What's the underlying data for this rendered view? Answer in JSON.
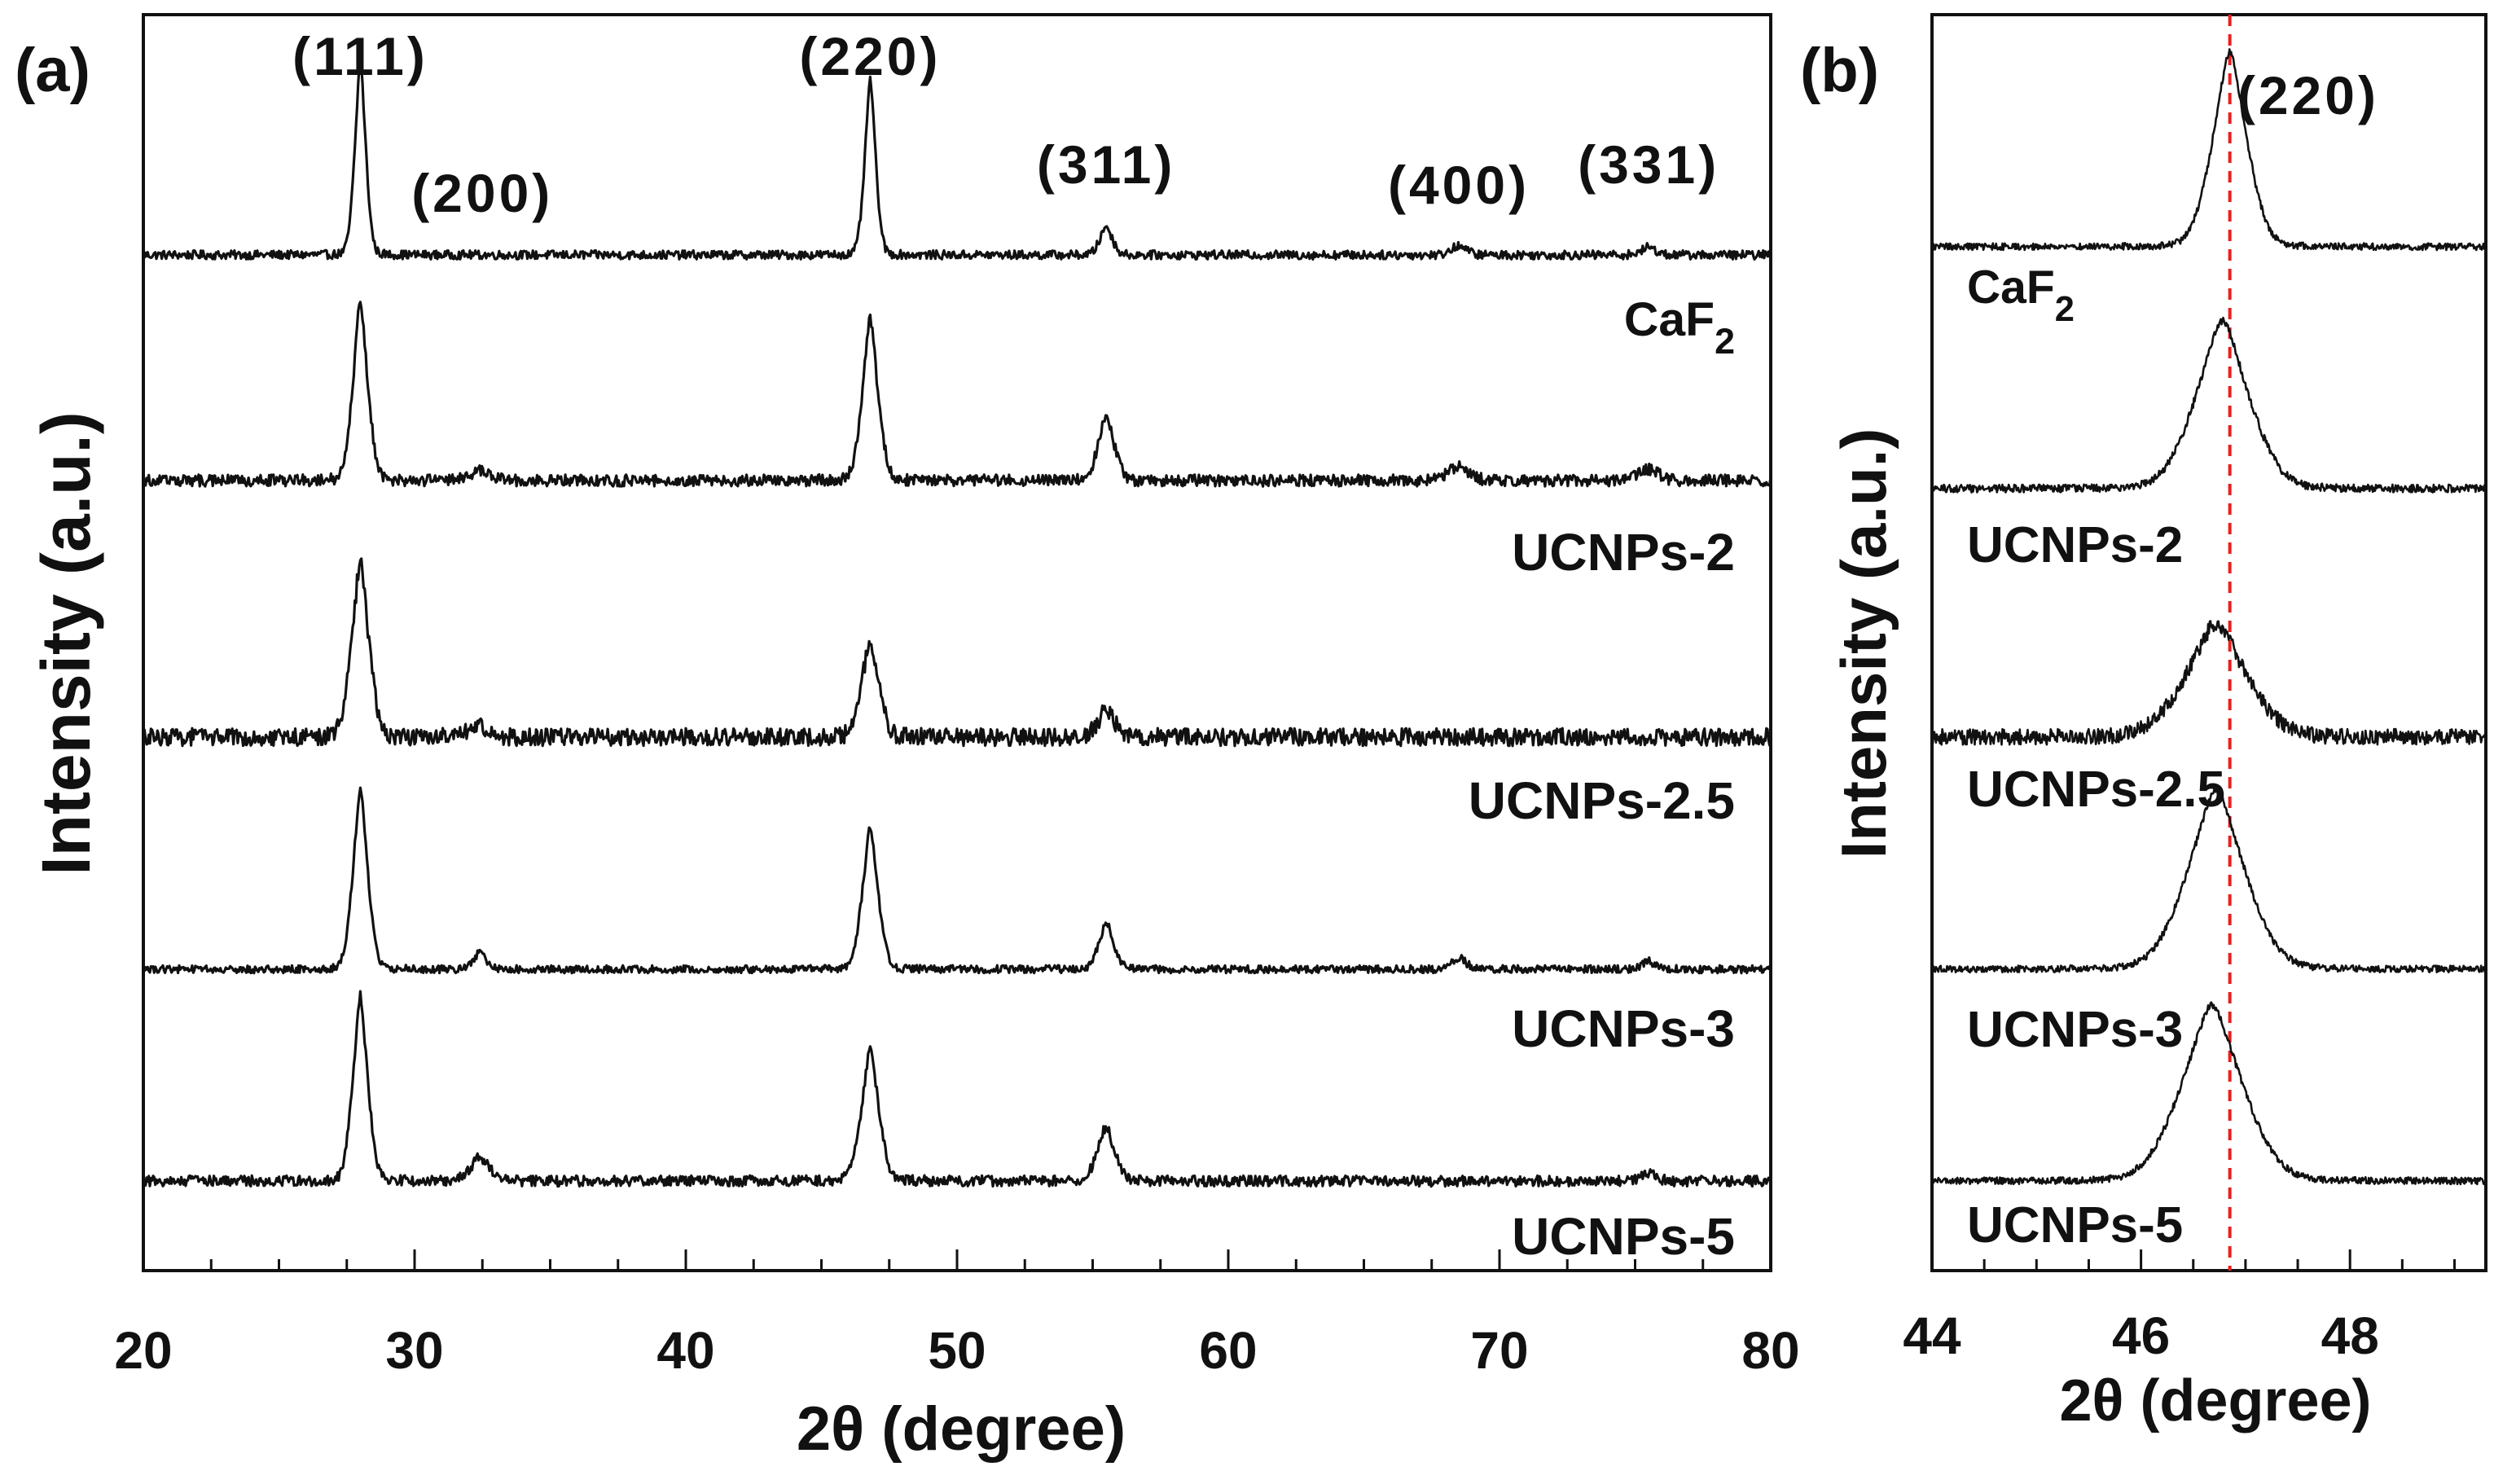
{
  "chart_data": [
    {
      "panel_label": "(a)",
      "type": "line",
      "xlabel": "2θ (degree)",
      "ylabel": "Intensity (a.u.)",
      "xlim": [
        20,
        80
      ],
      "x_ticks": [
        20,
        30,
        40,
        50,
        60,
        70,
        80
      ],
      "x_tick_labels": [
        "20",
        "30",
        "40",
        "50",
        "60",
        "70",
        "80"
      ],
      "yticks_shown": false,
      "peak_labels": [
        {
          "label": "(111)",
          "x": 28.0
        },
        {
          "label": "(200)",
          "x": 32.5
        },
        {
          "label": "(220)",
          "x": 46.8
        },
        {
          "label": "(311)",
          "x": 55.5
        },
        {
          "label": "(400)",
          "x": 68.5
        },
        {
          "label": "(331)",
          "x": 75.5
        }
      ],
      "series": [
        {
          "name": "CaF2",
          "label_main": "CaF",
          "label_sub": "2",
          "offset": 4,
          "noise": 0.045,
          "peaks": [
            {
              "x": 28.0,
              "h": 1.0,
              "w": 0.22
            },
            {
              "x": 46.8,
              "h": 0.9,
              "w": 0.22
            },
            {
              "x": 55.5,
              "h": 0.15,
              "w": 0.25
            },
            {
              "x": 68.5,
              "h": 0.05,
              "w": 0.3
            },
            {
              "x": 75.5,
              "h": 0.04,
              "w": 0.3
            }
          ]
        },
        {
          "name": "UCNPs-2",
          "offset": 3,
          "noise": 0.06,
          "peaks": [
            {
              "x": 28.0,
              "h": 0.92,
              "w": 0.3
            },
            {
              "x": 46.8,
              "h": 0.82,
              "w": 0.32
            },
            {
              "x": 55.5,
              "h": 0.34,
              "w": 0.32
            },
            {
              "x": 32.4,
              "h": 0.05,
              "w": 0.4
            },
            {
              "x": 68.5,
              "h": 0.08,
              "w": 0.4
            },
            {
              "x": 75.5,
              "h": 0.06,
              "w": 0.4
            }
          ]
        },
        {
          "name": "UCNPs-2.5",
          "offset": 2,
          "noise": 0.09,
          "peaks": [
            {
              "x": 28.0,
              "h": 0.9,
              "w": 0.35
            },
            {
              "x": 46.8,
              "h": 0.5,
              "w": 0.35
            },
            {
              "x": 55.5,
              "h": 0.14,
              "w": 0.35
            },
            {
              "x": 32.4,
              "h": 0.06,
              "w": 0.4
            }
          ]
        },
        {
          "name": "UCNPs-3",
          "offset": 1,
          "noise": 0.04,
          "peaks": [
            {
              "x": 28.0,
              "h": 0.92,
              "w": 0.3
            },
            {
              "x": 46.8,
              "h": 0.72,
              "w": 0.32
            },
            {
              "x": 55.5,
              "h": 0.24,
              "w": 0.3
            },
            {
              "x": 32.4,
              "h": 0.09,
              "w": 0.25
            },
            {
              "x": 68.5,
              "h": 0.06,
              "w": 0.3
            },
            {
              "x": 75.5,
              "h": 0.04,
              "w": 0.3
            }
          ]
        },
        {
          "name": "UCNPs-5",
          "offset": 0,
          "noise": 0.055,
          "peaks": [
            {
              "x": 28.0,
              "h": 0.95,
              "w": 0.3
            },
            {
              "x": 46.8,
              "h": 0.68,
              "w": 0.35
            },
            {
              "x": 55.5,
              "h": 0.28,
              "w": 0.35
            },
            {
              "x": 32.4,
              "h": 0.12,
              "w": 0.4
            },
            {
              "x": 75.5,
              "h": 0.04,
              "w": 0.3
            }
          ]
        }
      ]
    },
    {
      "panel_label": "(b)",
      "type": "line",
      "xlabel": "2θ (degree)",
      "ylabel": "Intensity (a.u.)",
      "xlim": [
        44,
        49.3
      ],
      "x_ticks": [
        44,
        46,
        48
      ],
      "x_tick_labels": [
        "44",
        "46",
        "48"
      ],
      "yticks_shown": false,
      "peak_labels": [
        {
          "label": "(220)",
          "x": 47.6
        }
      ],
      "reference_line": {
        "x": 46.85,
        "color": "#e8201e",
        "style": "dashed"
      },
      "series": [
        {
          "name": "CaF2",
          "label_main": "CaF",
          "label_sub": "2",
          "offset": 4,
          "noise": 0.035,
          "peaks": [
            {
              "x": 46.85,
              "h": 1.0,
              "w": 0.18
            }
          ]
        },
        {
          "name": "UCNPs-2",
          "offset": 3,
          "noise": 0.04,
          "peaks": [
            {
              "x": 46.78,
              "h": 0.86,
              "w": 0.28
            }
          ]
        },
        {
          "name": "UCNPs-2.5",
          "offset": 2,
          "noise": 0.08,
          "peaks": [
            {
              "x": 46.72,
              "h": 0.58,
              "w": 0.32
            }
          ]
        },
        {
          "name": "UCNPs-3",
          "offset": 1,
          "noise": 0.035,
          "peaks": [
            {
              "x": 46.72,
              "h": 0.92,
              "w": 0.3
            }
          ]
        },
        {
          "name": "UCNPs-5",
          "offset": 0,
          "noise": 0.035,
          "peaks": [
            {
              "x": 46.68,
              "h": 0.9,
              "w": 0.32
            }
          ]
        }
      ]
    }
  ]
}
